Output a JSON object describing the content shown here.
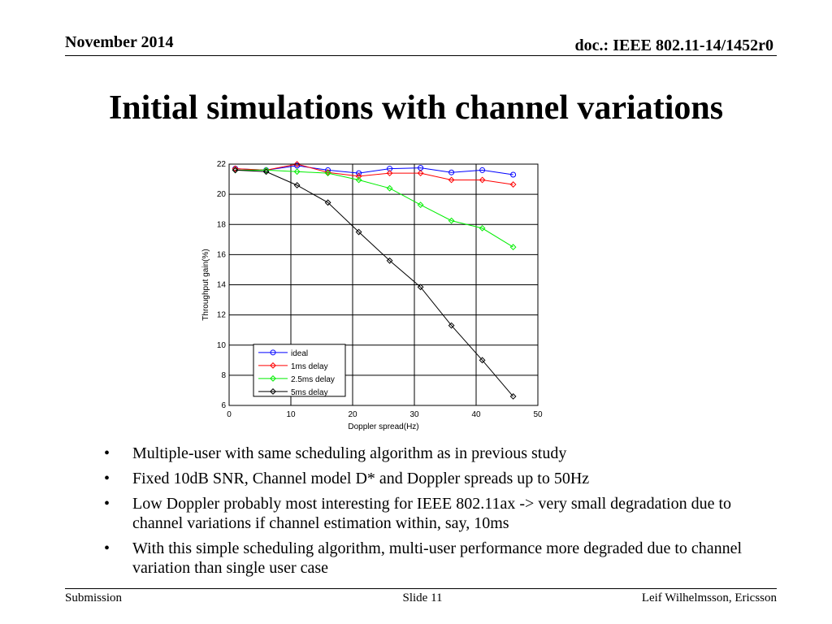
{
  "header": {
    "date": "November 2014",
    "doc": "doc.: IEEE 802.11-14/1452r0"
  },
  "title": "Initial simulations with channel variations",
  "chart_data": {
    "type": "line",
    "title": "",
    "xlabel": "Doppler spread(Hz)",
    "ylabel": "Throughput gain(%)",
    "xlim": [
      0,
      50
    ],
    "ylim": [
      6,
      22
    ],
    "xticks": [
      0,
      10,
      20,
      30,
      40,
      50
    ],
    "yticks": [
      6,
      8,
      10,
      12,
      14,
      16,
      18,
      20,
      22
    ],
    "grid": true,
    "legend_position": "lower-left",
    "x": [
      1,
      6,
      11,
      16,
      21,
      26,
      31,
      36,
      41,
      46
    ],
    "series": [
      {
        "name": "ideal",
        "color": "#0000ff",
        "marker": "circle",
        "values": [
          21.7,
          21.6,
          21.9,
          21.6,
          21.4,
          21.7,
          21.75,
          21.45,
          21.6,
          21.3
        ]
      },
      {
        "name": "1ms delay",
        "color": "#ff0000",
        "marker": "diamond",
        "values": [
          21.7,
          21.6,
          22.0,
          21.45,
          21.2,
          21.4,
          21.4,
          20.95,
          20.95,
          20.65
        ]
      },
      {
        "name": "2.5ms delay",
        "color": "#00ee00",
        "marker": "diamond",
        "values": [
          21.6,
          21.6,
          21.5,
          21.4,
          20.95,
          20.4,
          19.3,
          18.25,
          17.75,
          16.5
        ]
      },
      {
        "name": "5ms delay",
        "color": "#000000",
        "marker": "diamond",
        "values": [
          21.6,
          21.5,
          20.6,
          19.45,
          17.5,
          15.6,
          13.85,
          11.3,
          9.0,
          6.6
        ]
      }
    ]
  },
  "bullets": [
    "Multiple-user with same scheduling algorithm as in previous study",
    "Fixed 10dB SNR, Channel model D* and Doppler spreads up to 50Hz",
    "Low Doppler probably most interesting for IEEE 802.11ax -> very small degradation due to channel variations if channel estimation within, say, 10ms",
    "With this simple scheduling algorithm, multi-user performance more degraded due to channel variation than single user case"
  ],
  "footer": {
    "left": "Submission",
    "center": "Slide 11",
    "right": "Leif Wilhelmsson, Ericsson"
  }
}
